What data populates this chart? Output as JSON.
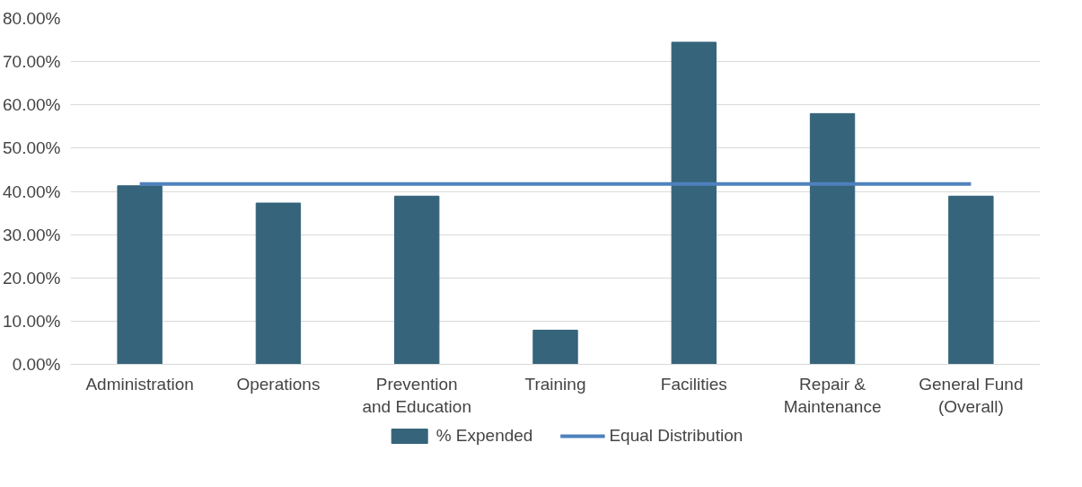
{
  "chart_data": {
    "type": "bar",
    "categories": [
      "Administration",
      "Operations",
      "Prevention and Education",
      "Training",
      "Facilities",
      "Repair & Maintenance",
      "General Fund (Overall)"
    ],
    "series": [
      {
        "name": "% Expended",
        "color": "#35647b",
        "values": [
          41.3,
          37.3,
          38.9,
          7.9,
          74.5,
          58.0,
          38.9
        ]
      },
      {
        "name": "Equal Distribution",
        "type": "line",
        "color": "#4f81bd",
        "values": [
          41.7,
          41.7,
          41.7,
          41.7,
          41.7,
          41.7,
          41.7
        ]
      }
    ],
    "ylim": [
      0,
      80
    ],
    "yticks": [
      {
        "value": 0,
        "label": "0.00%"
      },
      {
        "value": 10,
        "label": "10.00%"
      },
      {
        "value": 20,
        "label": "20.00%"
      },
      {
        "value": 30,
        "label": "30.00%"
      },
      {
        "value": 40,
        "label": "40.00%"
      },
      {
        "value": 50,
        "label": "50.00%"
      },
      {
        "value": 60,
        "label": "60.00%"
      },
      {
        "value": 70,
        "label": "70.00%"
      },
      {
        "value": 80,
        "label": "80.00%"
      }
    ],
    "grid": "y",
    "legend": "bottom"
  }
}
